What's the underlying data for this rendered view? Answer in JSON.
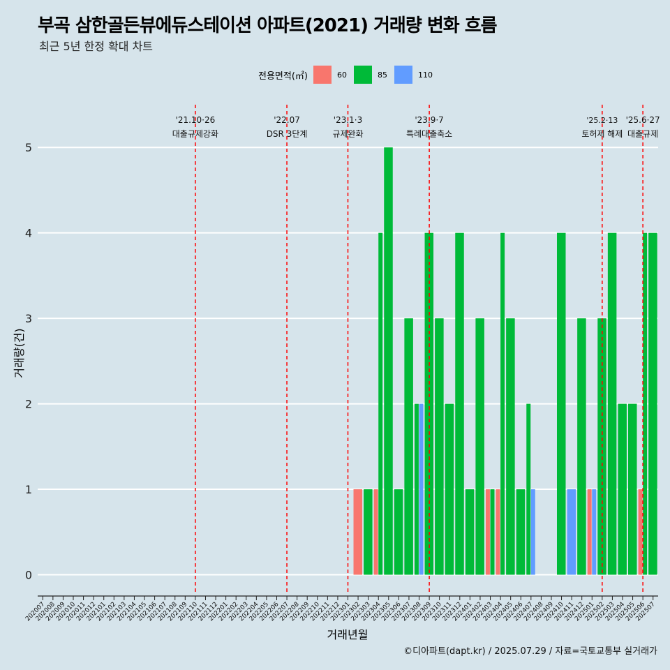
{
  "chart_data": {
    "type": "bar",
    "title": "부곡 삼한골든뷰에듀스테이션 아파트(2021) 거래량 변화 흐름",
    "subtitle": "최근 5년 한정 확대 차트",
    "xlabel": "거래년월",
    "ylabel": "거래량(건)",
    "ylim": [
      -0.2,
      5.5
    ],
    "yticks": [
      0,
      1,
      2,
      3,
      4,
      5
    ],
    "legend": {
      "title": "전용면적(㎡)",
      "position": "top",
      "entries": [
        {
          "name": "60",
          "color": "#f8766d"
        },
        {
          "name": "85",
          "color": "#00ba38"
        },
        {
          "name": "110",
          "color": "#619cff"
        }
      ]
    },
    "categories": [
      "202007",
      "202008",
      "202009",
      "202010",
      "202011",
      "202012",
      "202101",
      "202102",
      "202103",
      "202104",
      "202105",
      "202106",
      "202107",
      "202108",
      "202109",
      "202110",
      "202111",
      "202112",
      "202201",
      "202202",
      "202203",
      "202204",
      "202205",
      "202206",
      "202207",
      "202208",
      "202209",
      "202210",
      "202211",
      "202212",
      "202301",
      "202302",
      "202303",
      "202304",
      "202305",
      "202306",
      "202307",
      "202308",
      "202309",
      "202310",
      "202311",
      "202312",
      "202401",
      "202402",
      "202403",
      "202404",
      "202405",
      "202406",
      "202407",
      "202408",
      "202409",
      "202410",
      "202411",
      "202412",
      "202501",
      "202502",
      "202503",
      "202504",
      "202505",
      "202506",
      "202507"
    ],
    "series": [
      {
        "name": "60",
        "color": "#f8766d",
        "values": {
          "202302": 1,
          "202304": 1,
          "202403": 1,
          "202404": 1,
          "202501": 1,
          "202506": 1
        }
      },
      {
        "name": "85",
        "color": "#00ba38",
        "values": {
          "202303": 1,
          "202304": 4,
          "202305": 5,
          "202306": 1,
          "202307": 3,
          "202308": 2,
          "202309": 4,
          "202310": 3,
          "202311": 2,
          "202312": 4,
          "202401": 1,
          "202402": 3,
          "202403": 1,
          "202404": 4,
          "202405": 3,
          "202406": 1,
          "202407": 2,
          "202410": 4,
          "202412": 3,
          "202502": 3,
          "202503": 4,
          "202504": 2,
          "202505": 2,
          "202506": 4,
          "202507": 4
        }
      },
      {
        "name": "110",
        "color": "#619cff",
        "values": {
          "202308": 2,
          "202407": 1,
          "202411": 1,
          "202501": 1
        }
      }
    ],
    "events": [
      {
        "month": "202110",
        "date": "'21.10·26",
        "label": "대출규제강화"
      },
      {
        "month": "202207",
        "date": "'22.07",
        "label": "DSR 3단계"
      },
      {
        "month": "202301",
        "date": "'23.1·3",
        "label": "규제완화"
      },
      {
        "month": "202309",
        "date": "'23.9·7",
        "label": "특례대출축소"
      },
      {
        "month": "202502",
        "date": "'25.2·13",
        "label": "토허제 해제"
      },
      {
        "month": "202506",
        "date": "'25.6·27",
        "label": "대출규제"
      }
    ],
    "event_line_color": "#ff0000",
    "caption": "©디아파트(dapt.kr) / 2025.07.29 / 자료=국토교통부 실거래가"
  }
}
